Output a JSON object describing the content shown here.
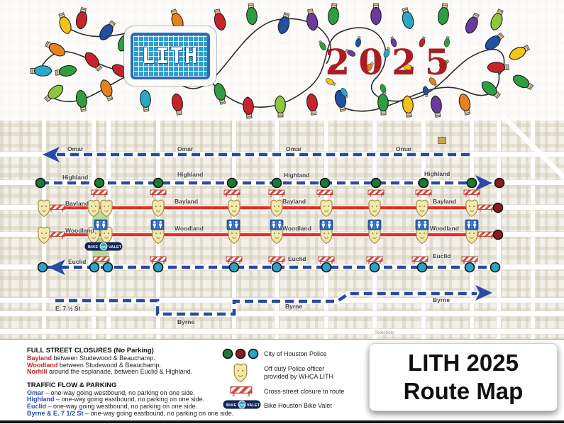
{
  "header": {
    "logo_text": "LITH",
    "year": "2025",
    "light_colors": [
      "#c8232c",
      "#e8821e",
      "#f3c317",
      "#2f9e41",
      "#2150a4",
      "#6a3a9d",
      "#29a8c8",
      "#8dc63f"
    ]
  },
  "map": {
    "streets": {
      "omar": "Omar",
      "highland": "Highland",
      "bayland": "Bayland",
      "woodland": "Woodland",
      "euclid": "Euclid",
      "byrne": "Byrne",
      "e7half": "E. 7 ½ St",
      "teetshorn": "Teetshorn"
    },
    "bike_valet": {
      "left": "BIKE",
      "right": "VALET"
    },
    "colors": {
      "closed_route_red": "#e0312a",
      "flow_route_blue": "#2b4aa5",
      "police_green": "#1b7a34",
      "police_dark_red": "#8e1b21",
      "police_teal": "#2ba3c4",
      "esplanade_green": "#b9d89b"
    }
  },
  "legend": {
    "closures": {
      "heading": "FULL STREET CLOSURES (No Parking)",
      "items": [
        {
          "street": "Bayland",
          "rest": " between Studewood & Beauchamp."
        },
        {
          "street": "Woodland",
          "rest": " between Studewood & Beauchamp."
        },
        {
          "street": "Norhill",
          "rest": " around the esplanade, between Euclid & Highland."
        }
      ]
    },
    "traffic": {
      "heading": "TRAFFIC FLOW & PARKING",
      "items": [
        {
          "street": "Omar",
          "rest": " – one-way going westbound, no parking on one side."
        },
        {
          "street": "Highland",
          "rest": " – one-way going eastbound, no parking on one side."
        },
        {
          "street": "Euclid",
          "rest": " – one-way going westbound, no parking on one side."
        },
        {
          "street": "Byrne & E. 7 1/2 St",
          "rest": " – one-way going eastbound, no parking on one side."
        }
      ]
    },
    "symbols": [
      {
        "label": "City of Houston Police"
      },
      {
        "label": "Off duty Police officer",
        "label2": "provided by WHCA LITH"
      },
      {
        "label": "Cross-street closure to route"
      },
      {
        "label": "Bike Houston Bike Valet"
      }
    ]
  },
  "title": {
    "line1": "LITH 2025",
    "line2": "Route Map"
  }
}
